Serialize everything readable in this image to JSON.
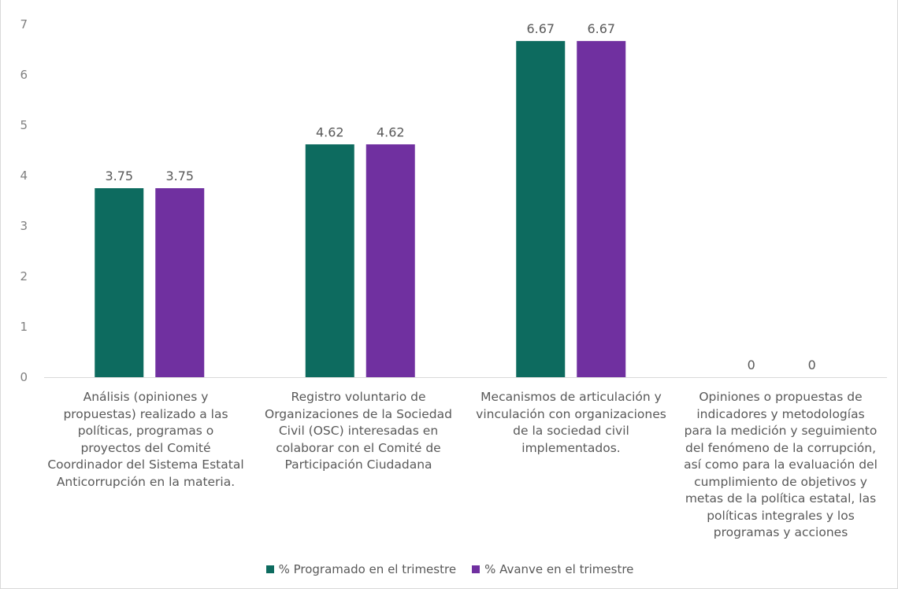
{
  "chart_data": {
    "type": "bar",
    "categories": [
      "Análisis (opiniones y propuestas) realizado a las políticas, programas o proyectos del Comité Coordinador del Sistema Estatal Anticorrupción en la materia.",
      "Registro voluntario de Organizaciones de la Sociedad Civil (OSC) interesadas en colaborar con el Comité de Participación Ciudadana",
      "Mecanismos de articulación y vinculación con organizaciones de la sociedad civil implementados.",
      "Opiniones o propuestas de indicadores y metodologías para la medición y seguimiento del fenómeno de la corrupción, así como para la evaluación del cumplimiento de objetivos y metas de la política estatal, las políticas integrales y los programas y acciones"
    ],
    "category_lines": [
      [
        "Análisis (opiniones y",
        "propuestas) realizado a las",
        "políticas, programas o",
        "proyectos del Comité",
        "Coordinador del Sistema Estatal",
        "Anticorrupción en la materia."
      ],
      [
        "Registro voluntario de",
        "Organizaciones de la Sociedad",
        "Civil (OSC) interesadas en",
        "colaborar con el Comité de",
        "Participación Ciudadana"
      ],
      [
        "Mecanismos de articulación y",
        "vinculación con organizaciones",
        "de la sociedad civil",
        "implementados."
      ],
      [
        "Opiniones o propuestas de",
        "indicadores y metodologías",
        "para la medición y seguimiento",
        "del fenómeno de la corrupción,",
        "así como para la evaluación del",
        "cumplimiento de objetivos y",
        "metas de la política estatal, las",
        "políticas integrales y los",
        "programas y acciones"
      ]
    ],
    "series": [
      {
        "name": "% Programado en el trimestre",
        "color": "#0d6b5f",
        "values": [
          3.75,
          4.62,
          6.67,
          0
        ],
        "labels": [
          "3.75",
          "4.62",
          "6.67",
          "0"
        ]
      },
      {
        "name": "% Avanve en el trimestre",
        "color": "#7030a0",
        "values": [
          3.75,
          4.62,
          6.67,
          0
        ],
        "labels": [
          "3.75",
          "4.62",
          "6.67",
          "0"
        ]
      }
    ],
    "ylim": [
      0,
      7
    ],
    "yticks": [
      "0",
      "1",
      "2",
      "3",
      "4",
      "5",
      "6",
      "7"
    ],
    "grid": false,
    "legend_position": "bottom"
  }
}
